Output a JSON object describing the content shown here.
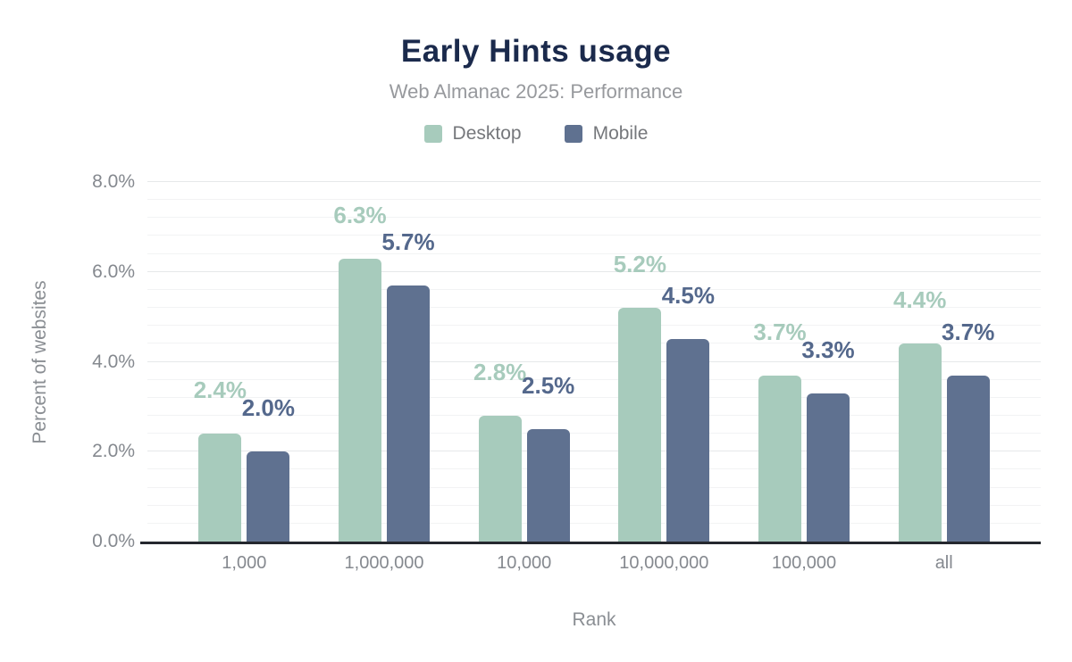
{
  "chart_data": {
    "type": "bar",
    "title": "Early Hints usage",
    "subtitle": "Web Almanac 2025: Performance",
    "xlabel": "Rank",
    "ylabel": "Percent of websites",
    "categories": [
      "1,000",
      "1,000,000",
      "10,000",
      "10,000,000",
      "100,000",
      "all"
    ],
    "series": [
      {
        "name": "Desktop",
        "color": "#a7cbbc",
        "label_color": "#a7cbbc",
        "values": [
          2.4,
          6.3,
          2.8,
          5.2,
          3.7,
          4.4
        ],
        "labels": [
          "2.4%",
          "6.3%",
          "2.8%",
          "5.2%",
          "3.7%",
          "4.4%"
        ]
      },
      {
        "name": "Mobile",
        "color": "#5f7190",
        "label_color": "#54688c",
        "values": [
          2.0,
          5.7,
          2.5,
          4.5,
          3.3,
          3.7
        ],
        "labels": [
          "2.0%",
          "5.7%",
          "2.5%",
          "4.5%",
          "3.3%",
          "3.7%"
        ]
      }
    ],
    "ylim": [
      0,
      8
    ],
    "yticks": [
      "0.0%",
      "2.0%",
      "4.0%",
      "6.0%",
      "8.0%"
    ],
    "grid": "horizontal minor lines every 0.4%, major lines every 2.0%",
    "legend_position": "top",
    "title_color": "#1b2a4c",
    "axis_line_color": "#25282e"
  }
}
